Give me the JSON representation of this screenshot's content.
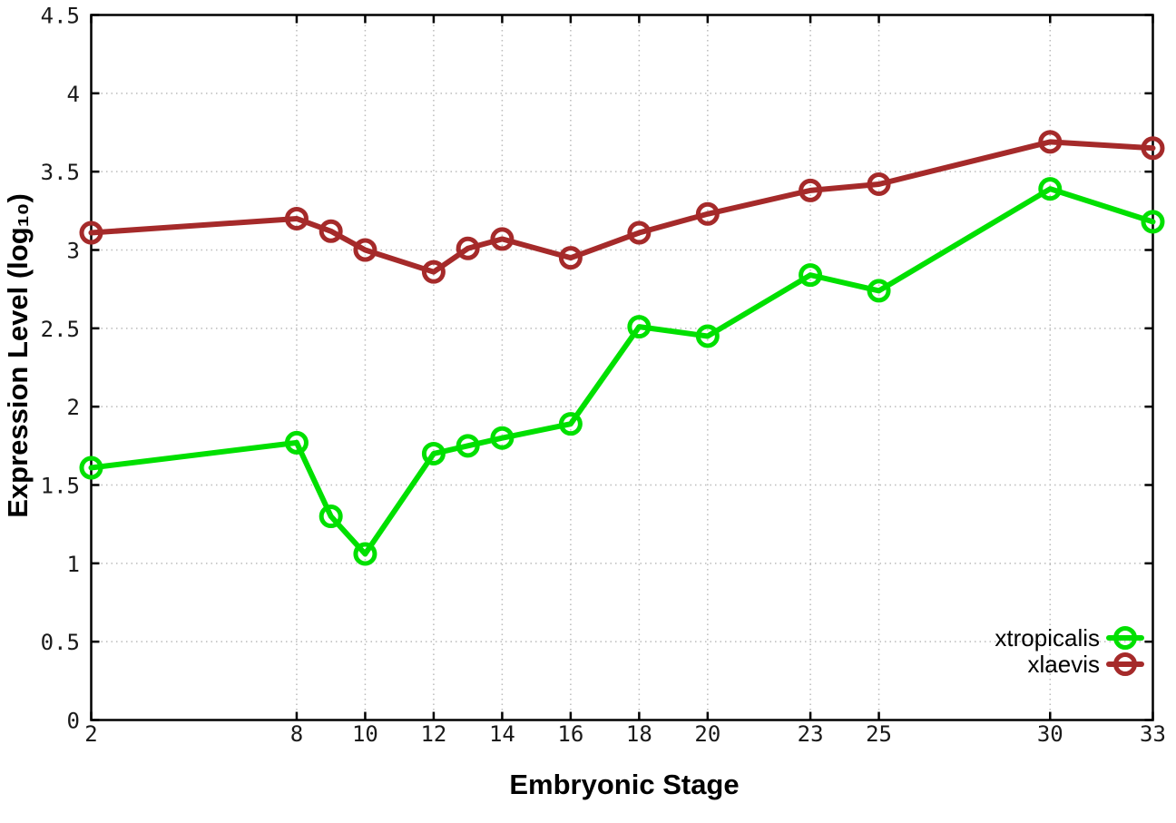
{
  "figure": {
    "background": "#ffffff",
    "axis_color": "#000000",
    "grid_color": "#bbbbbb",
    "tick_label_color": "#1a1a1a"
  },
  "chart_data": {
    "type": "line",
    "title": "",
    "xlabel": "Embryonic Stage",
    "ylabel": "Expression Level (log10)",
    "xlabel_display": "Embryonic Stage",
    "ylabel_display": "Expression Level (log₁₀)",
    "x": [
      2,
      8,
      9,
      10,
      12,
      13,
      14,
      16,
      18,
      20,
      23,
      25,
      30,
      33
    ],
    "series": [
      {
        "name": "xtropicalis",
        "color": "#00e000",
        "values": [
          1.61,
          1.77,
          1.3,
          1.06,
          1.7,
          1.75,
          1.8,
          1.89,
          2.51,
          2.45,
          2.84,
          2.74,
          3.39,
          3.18
        ]
      },
      {
        "name": "xlaevis",
        "color": "#a52a2a",
        "values": [
          3.11,
          3.2,
          3.12,
          3.0,
          2.86,
          3.01,
          3.07,
          2.95,
          3.11,
          3.23,
          3.38,
          3.42,
          3.69,
          3.65
        ]
      }
    ],
    "xlim": [
      2,
      33
    ],
    "ylim": [
      0,
      4.5
    ],
    "xticks": {
      "values": [
        2,
        8,
        10,
        12,
        14,
        16,
        18,
        20,
        23,
        25,
        30,
        33
      ],
      "labels": [
        "2",
        "8",
        "10",
        "12",
        "14",
        "16",
        "18",
        "20",
        "23",
        "25",
        "30",
        "33"
      ]
    },
    "yticks": {
      "values": [
        0,
        0.5,
        1,
        1.5,
        2,
        2.5,
        3,
        3.5,
        4,
        4.5
      ],
      "labels": [
        "0",
        "0.5",
        "1",
        "1.5",
        "2",
        "2.5",
        "3",
        "3.5",
        "4",
        "4.5"
      ]
    },
    "grid": true,
    "legend_position": "bottom-right",
    "legend_entries": [
      "xtropicalis",
      "xlaevis"
    ]
  }
}
